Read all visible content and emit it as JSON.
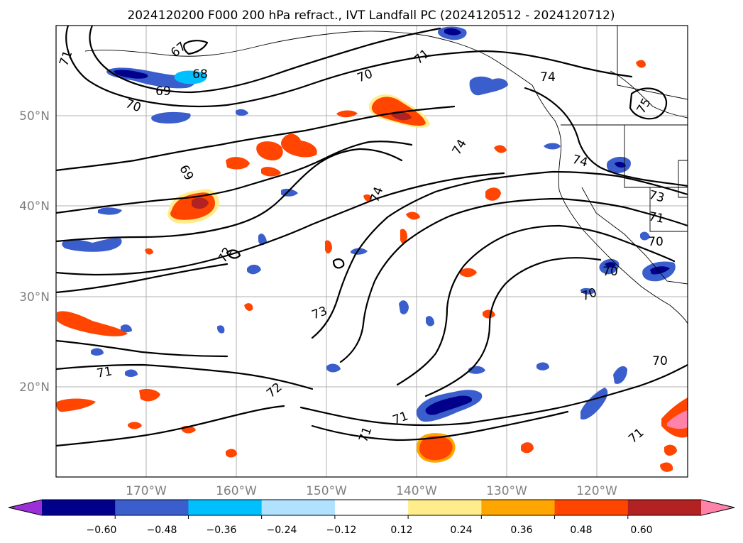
{
  "title": "2024120200 F000 200 hPa refract., IVT Landfall PC (2024120512 - 2024120712)",
  "lat_labels": [
    "50°N",
    "40°N",
    "30°N",
    "20°N"
  ],
  "lon_labels": [
    "170°W",
    "160°W",
    "150°W",
    "140°W",
    "130°W",
    "120°W"
  ],
  "colorbar": {
    "ticks": [
      "−0.60",
      "−0.48",
      "−0.36",
      "−0.24",
      "−0.12",
      "0.12",
      "0.24",
      "0.36",
      "0.48",
      "0.60"
    ],
    "colors": [
      "#9b30d9",
      "#00008b",
      "#3a5fcd",
      "#00bfff",
      "#b0e2ff",
      "#ffffff",
      "#ffec8b",
      "#ffa500",
      "#ff4500",
      "#b22222",
      "#ff82ab"
    ]
  },
  "contour_labels": [
    "71",
    "67",
    "68",
    "69",
    "70",
    "70",
    "71",
    "74",
    "75",
    "69",
    "74",
    "74",
    "74",
    "73",
    "71",
    "70",
    "72",
    "70",
    "70",
    "73",
    "71",
    "71",
    "71",
    "71",
    "72",
    "70",
    "71"
  ]
}
